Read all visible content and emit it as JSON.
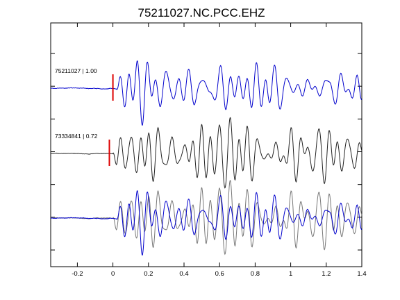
{
  "chart_data": {
    "type": "line",
    "title": "75211027.NC.PCC.EHZ",
    "xlabel": "",
    "ylabel": "",
    "xlim": [
      -0.35,
      1.4
    ],
    "x_ticks": [
      -0.2,
      0,
      0.2,
      0.4,
      0.6,
      0.8,
      1.0,
      1.2,
      1.4
    ],
    "x_tick_labels": [
      "-0.2",
      "0",
      "0.2",
      "0.4",
      "0.6",
      "0.8",
      "1",
      "1.2",
      "1.4"
    ],
    "y_ticks_count": 7,
    "grid": false,
    "panels": [
      {
        "label": "75211027 | 1.00",
        "pick_time": 0.0,
        "series": [
          {
            "color": "#0000cc",
            "role": "target"
          }
        ]
      },
      {
        "label": "73334841 | 0.72",
        "pick_time": -0.02,
        "series": [
          {
            "color": "#222222",
            "role": "template"
          }
        ]
      },
      {
        "label": "",
        "series": [
          {
            "color": "#777777",
            "role": "template-overlay"
          },
          {
            "color": "#0000cc",
            "role": "target-overlay"
          }
        ]
      }
    ],
    "pick_color": "#dd0000"
  }
}
